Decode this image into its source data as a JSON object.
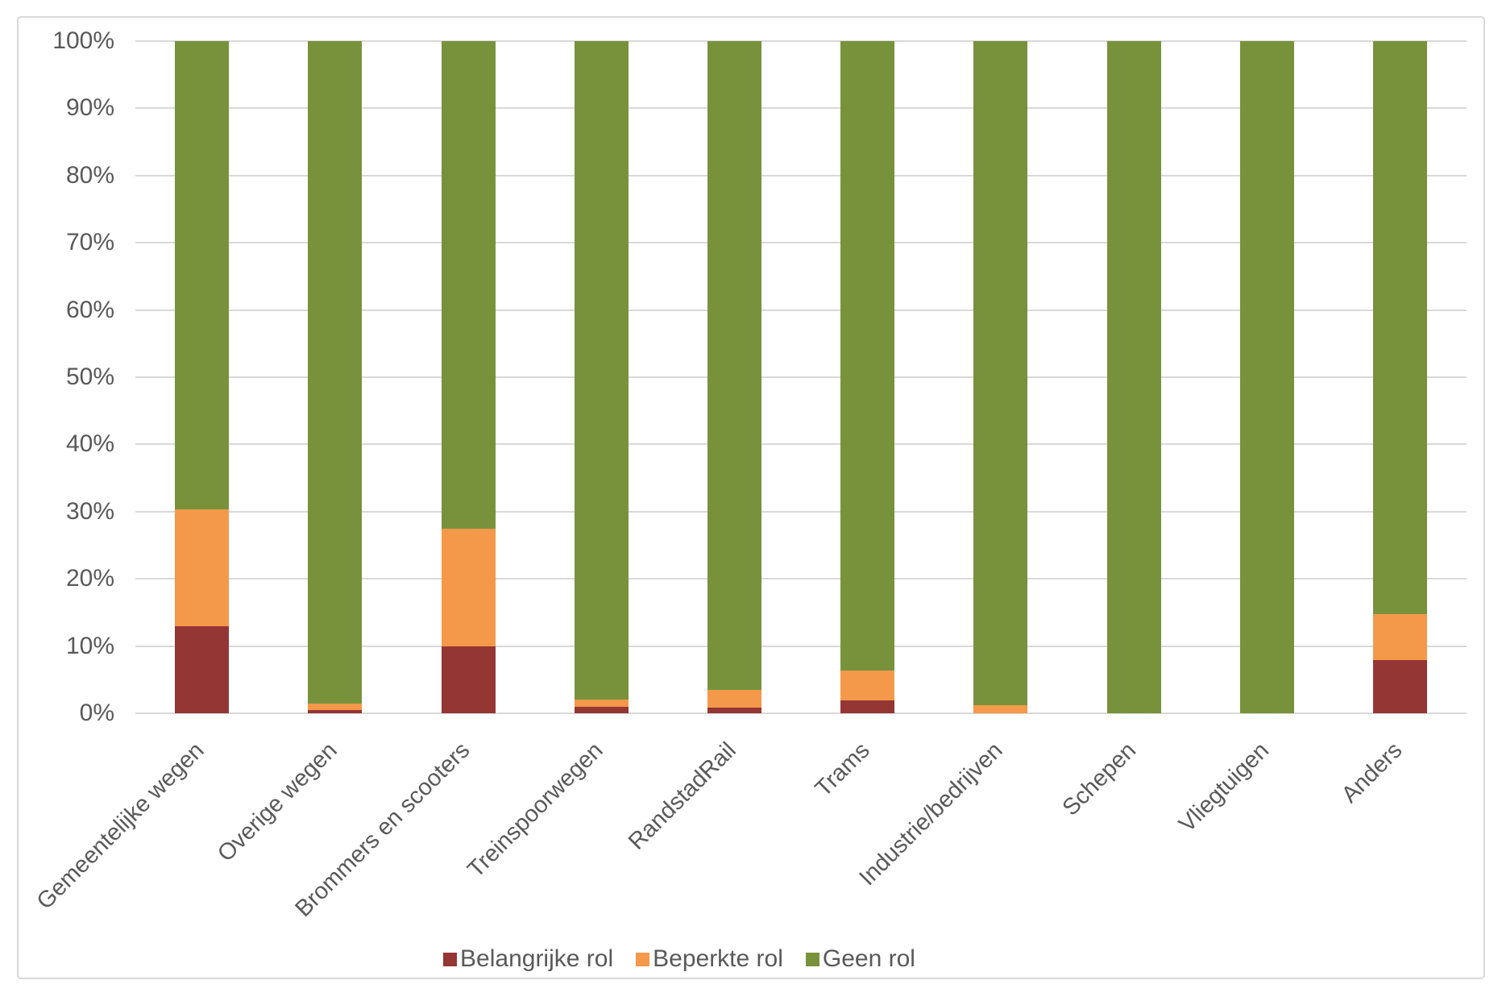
{
  "chart_data": {
    "type": "bar",
    "stacked": true,
    "percent_stacked": true,
    "title": "",
    "xlabel": "",
    "ylabel": "",
    "categories": [
      "Gemeentelijke wegen",
      "Overige wegen",
      "Brommers en scooters",
      "Treinspoorwegen",
      "RandstadRail",
      "Trams",
      "Industrie/bedrijven",
      "Schepen",
      "Vliegtuigen",
      "Anders"
    ],
    "series": [
      {
        "name": "Belangrijke rol",
        "color": "#943634",
        "values": [
          13.0,
          0.5,
          10.0,
          1.0,
          0.9,
          1.9,
          0.0,
          0.0,
          0.0,
          7.9
        ]
      },
      {
        "name": "Beperkte rol",
        "color": "#F4984A",
        "values": [
          17.3,
          1.0,
          17.5,
          1.1,
          2.6,
          4.4,
          1.2,
          0.0,
          0.0,
          6.8
        ]
      },
      {
        "name": "Geen rol",
        "color": "#78923C",
        "values": [
          69.7,
          98.5,
          72.5,
          97.9,
          96.5,
          93.7,
          98.8,
          100.0,
          100.0,
          85.3
        ]
      }
    ],
    "ylim": [
      0,
      100
    ],
    "ytick_labels": [
      "0%",
      "10%",
      "20%",
      "30%",
      "40%",
      "50%",
      "60%",
      "70%",
      "80%",
      "90%",
      "100%"
    ],
    "grid": true,
    "legend_position": "bottom"
  },
  "colors": {
    "background": "#FFFFFF",
    "frame_border": "#D9D9D9",
    "gridline": "#D9D9D9",
    "axis_text": "#595959"
  }
}
